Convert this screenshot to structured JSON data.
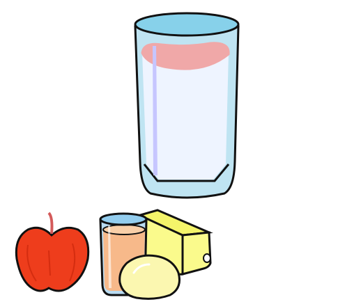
{
  "scene": {
    "background_color": "#ffffff",
    "objects": [
      {
        "name": "glass-of-milk",
        "icon": "milk-glass-icon",
        "colors": {
          "glass": "#bfe4f2",
          "rim": "#87d1ea",
          "milk": "#eef4ff",
          "milk_line": "#f0a8a8",
          "highlight": "#c6c6ff",
          "outline": "#111111"
        }
      },
      {
        "name": "red-apple",
        "icon": "apple-icon",
        "colors": {
          "skin": "#ee3d1c",
          "shadow": "#d42d10",
          "stem": "#d45a5a",
          "outline": "#111111"
        }
      },
      {
        "name": "glass-of-juice",
        "icon": "juice-glass-icon",
        "colors": {
          "juice": "#f7b98a",
          "glass": "#b9dcf2",
          "rim": "#93cdee",
          "outline": "#111111"
        }
      },
      {
        "name": "cheese-wedge",
        "icon": "cheese-icon",
        "colors": {
          "cheese": "#fafa8c",
          "rind": "#f4f46a",
          "outline": "#111111"
        }
      },
      {
        "name": "egg",
        "icon": "egg-icon",
        "colors": {
          "shell": "#fbf7b0",
          "highlight": "#ffffff",
          "outline": "#111111"
        }
      }
    ]
  }
}
